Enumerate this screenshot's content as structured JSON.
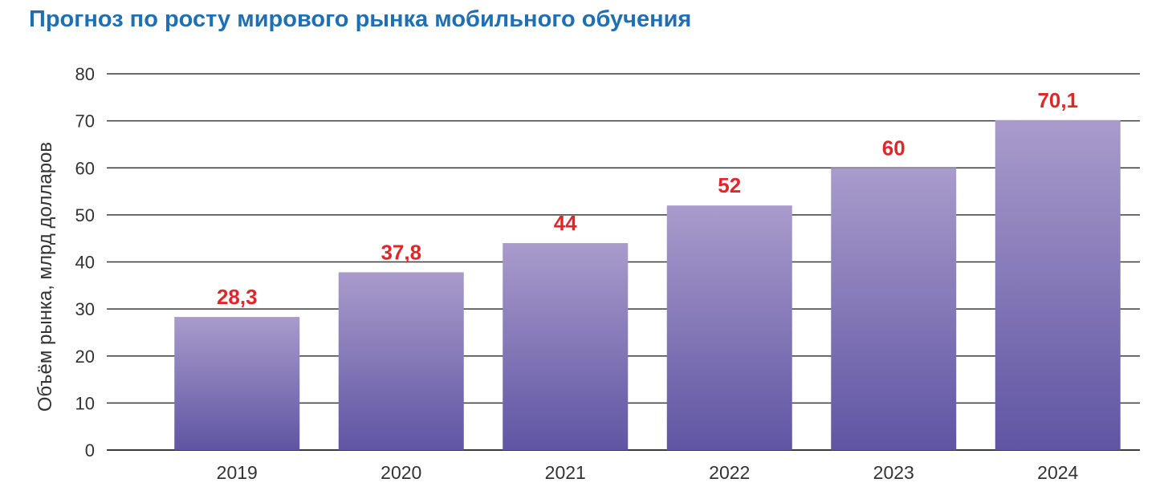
{
  "chart_data": {
    "type": "bar",
    "title": "Прогноз по росту мирового рынка мобильного обучения",
    "ylabel": "Объём рынка, млрд долларов",
    "xlabel": "",
    "categories": [
      "2019",
      "2020",
      "2021",
      "2022",
      "2023",
      "2024"
    ],
    "values": [
      28.3,
      37.8,
      44,
      52,
      60,
      70.1
    ],
    "value_labels": [
      "28,3",
      "37,8",
      "44",
      "52",
      "60",
      "70,1"
    ],
    "ylim": [
      0,
      80
    ],
    "yticks": [
      0,
      10,
      20,
      30,
      40,
      50,
      60,
      70,
      80
    ],
    "grid": true,
    "colors": {
      "title": "#1f6fb4",
      "bar_top": "#a99bcb",
      "bar_bottom": "#5f55a3",
      "data_label": "#e0262b",
      "grid": "#3a3a3a",
      "text": "#333333"
    }
  }
}
